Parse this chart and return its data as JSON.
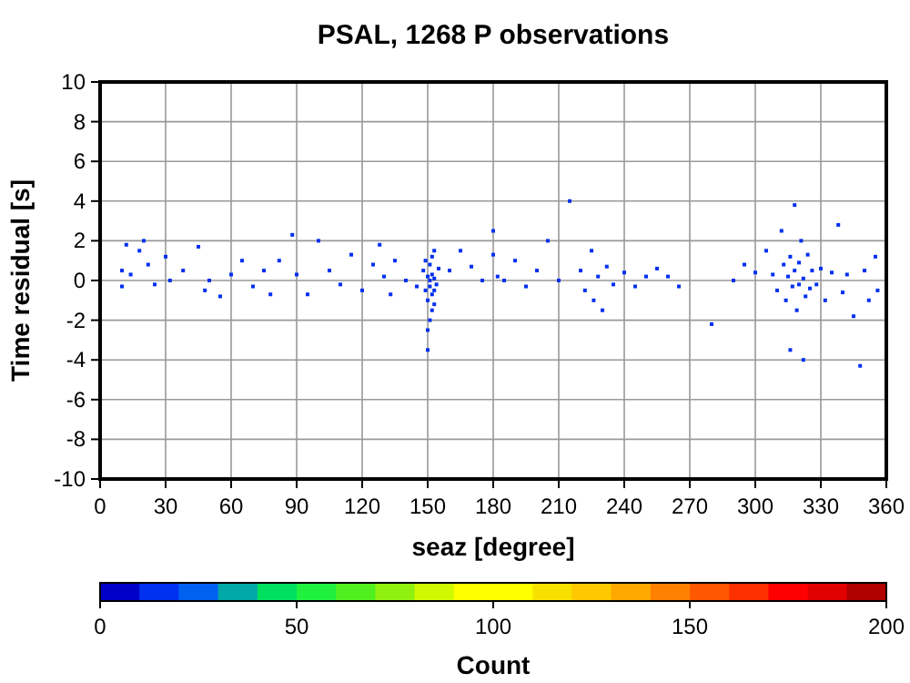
{
  "chart_data": {
    "type": "scatter",
    "title": "PSAL, 1268 P observations",
    "xlabel": "seaz [degree]",
    "ylabel": "Time residual [s]",
    "clabel": "Count",
    "xlim": [
      0,
      360
    ],
    "xticks": [
      0,
      30,
      60,
      90,
      120,
      150,
      180,
      210,
      240,
      270,
      300,
      330,
      360
    ],
    "ylim": [
      -10,
      10
    ],
    "yticks": [
      -10,
      -8,
      -6,
      -4,
      -2,
      0,
      2,
      4,
      6,
      8,
      10
    ],
    "clim": [
      0,
      200
    ],
    "cticks": [
      0,
      50,
      100,
      150,
      200
    ],
    "grid": true,
    "marker": "square",
    "x": [
      10,
      10,
      12,
      14,
      18,
      20,
      22,
      25,
      30,
      32,
      38,
      45,
      48,
      50,
      55,
      60,
      65,
      70,
      75,
      78,
      82,
      88,
      90,
      95,
      100,
      105,
      110,
      115,
      120,
      125,
      128,
      130,
      133,
      135,
      140,
      145,
      148,
      149,
      150,
      150,
      151,
      151,
      151,
      152,
      152,
      152,
      153,
      153,
      153,
      150,
      150,
      154,
      155,
      149,
      151,
      152,
      153,
      160,
      165,
      170,
      175,
      180,
      180,
      182,
      185,
      190,
      195,
      200,
      205,
      210,
      215,
      220,
      222,
      225,
      226,
      228,
      230,
      232,
      235,
      240,
      245,
      250,
      255,
      260,
      265,
      280,
      290,
      295,
      300,
      305,
      308,
      310,
      312,
      313,
      314,
      315,
      316,
      317,
      318,
      319,
      320,
      320,
      321,
      322,
      323,
      324,
      325,
      318,
      316,
      322,
      326,
      328,
      330,
      332,
      335,
      338,
      340,
      342,
      345,
      348,
      350,
      352,
      355,
      356
    ],
    "values": [
      0.5,
      -0.3,
      1.8,
      0.3,
      1.5,
      2,
      0.8,
      -0.2,
      1.2,
      0,
      0.5,
      1.7,
      -0.5,
      0,
      -0.8,
      0.3,
      1,
      -0.3,
      0.5,
      -0.7,
      1,
      2.3,
      0.3,
      -0.7,
      2,
      0.5,
      -0.2,
      1.3,
      -0.5,
      0.8,
      1.8,
      0.2,
      -0.7,
      1,
      0,
      -0.3,
      0.5,
      -0.5,
      0.2,
      -1,
      0,
      -0.3,
      0.8,
      -0.7,
      0.3,
      -1.5,
      0.1,
      -0.5,
      1.5,
      -2.5,
      -3.5,
      -0.2,
      0.6,
      1,
      -2,
      1.2,
      -1.2,
      0.5,
      1.5,
      0.7,
      0,
      2.5,
      1.3,
      0.2,
      0,
      1,
      -0.3,
      0.5,
      2,
      0,
      4,
      0.5,
      -0.5,
      1.5,
      -1,
      0.2,
      -1.5,
      0.7,
      -0.2,
      0.4,
      -0.3,
      0.2,
      0.6,
      0.2,
      -0.3,
      -2.2,
      0,
      0.8,
      0.4,
      1.5,
      0.3,
      -0.5,
      2.5,
      0.8,
      -1,
      0.2,
      1.2,
      -0.3,
      0.5,
      -1.5,
      0.9,
      -0.2,
      2,
      0.1,
      -0.8,
      1.3,
      -0.4,
      3.8,
      -3.5,
      -4,
      0.5,
      -0.2,
      0.6,
      -1,
      0.4,
      2.8,
      -0.6,
      0.3,
      -1.8,
      -4.3,
      0.5,
      -1,
      1.2,
      -0.5
    ],
    "cvalues": [
      15,
      15,
      15,
      15,
      15,
      15,
      15,
      15,
      15,
      15,
      15,
      15,
      15,
      15,
      15,
      15,
      15,
      15,
      15,
      15,
      15,
      15,
      15,
      15,
      15,
      15,
      15,
      15,
      15,
      15,
      15,
      15,
      15,
      15,
      15,
      15,
      15,
      15,
      15,
      15,
      15,
      15,
      15,
      15,
      15,
      15,
      15,
      15,
      15,
      15,
      15,
      15,
      15,
      15,
      15,
      15,
      15,
      15,
      15,
      15,
      15,
      15,
      15,
      15,
      15,
      15,
      15,
      15,
      15,
      15,
      15,
      15,
      15,
      15,
      15,
      15,
      15,
      15,
      15,
      15,
      15,
      15,
      15,
      15,
      15,
      15,
      15,
      15,
      15,
      15,
      15,
      15,
      15,
      15,
      15,
      15,
      15,
      15,
      15,
      15,
      15,
      15,
      15,
      15,
      15,
      15,
      15,
      15,
      15,
      15,
      15,
      15,
      15,
      15,
      15,
      15,
      15,
      15,
      15,
      15,
      15,
      15,
      15,
      15
    ]
  }
}
